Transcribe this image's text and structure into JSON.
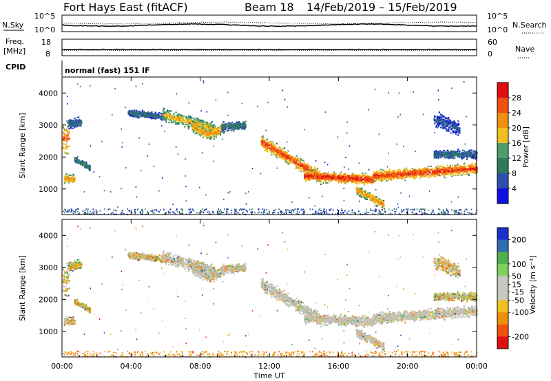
{
  "header": {
    "station": "Fort Hays East (fitACF)",
    "beam": "Beam 18",
    "date_range": "14/Feb/2019 – 15/Feb/2019"
  },
  "top_panels": {
    "nsky_label": "N.Sky",
    "nsky_ticks": [
      "10^5",
      "10^0"
    ],
    "nsearch_label": "N.Search",
    "nsearch_ticks": [
      "10^5",
      "10^0"
    ],
    "freq_label": "Freq.",
    "freq_unit": "[MHz]",
    "freq_ticks": [
      "18",
      "8"
    ],
    "nave_label": "Nave",
    "nave_ticks": [
      "60",
      "0"
    ],
    "cpid_label": "CPID",
    "cpid_value": "normal (fast) 151 IF"
  },
  "colors": {
    "power_scale": [
      "#1010e0",
      "#2f4fb0",
      "#2c7a5c",
      "#4f9d6a",
      "#f0c020",
      "#f09010",
      "#f05010",
      "#e01010"
    ],
    "velocity_scale": [
      "#e01010",
      "#f05010",
      "#f09010",
      "#f0c020",
      "#c8c8c0",
      "#c8c8c0",
      "#80d060",
      "#50b050",
      "#2f6fb0",
      "#1a2fd0"
    ],
    "ground_scatter": "#c0c0b8"
  },
  "chart_data": [
    {
      "type": "heatmap",
      "panel": "power",
      "ylabel": "Slant Range [km]",
      "yticks": [
        1000,
        2000,
        3000,
        4000
      ],
      "ylim": [
        200,
        4500
      ],
      "colorbar_label": "Power [dB]",
      "colorbar_ticks": [
        4,
        8,
        12,
        16,
        20,
        24,
        28
      ],
      "colorbar_range": [
        0,
        32
      ],
      "features": [
        {
          "t": [
            0.0,
            1.0
          ],
          "range": [
            2000,
            3300
          ],
          "power": 24
        },
        {
          "t": [
            0.2,
            0.8
          ],
          "range": [
            1150,
            1500
          ],
          "power": 20
        },
        {
          "t": [
            5.5,
            9.0
          ],
          "range": [
            2700,
            3700
          ],
          "power": 16
        },
        {
          "t": [
            10.5,
            12.0
          ],
          "range": [
            2900,
            3300
          ],
          "power": 8
        },
        {
          "t": [
            11.8,
            18.0
          ],
          "range": [
            1200,
            2700
          ],
          "power": 24
        },
        {
          "t": [
            16.0,
            24.0
          ],
          "range": [
            1200,
            2200
          ],
          "power": 24
        },
        {
          "t": [
            17.0,
            18.5
          ],
          "range": [
            500,
            1100
          ],
          "power": 20
        }
      ]
    },
    {
      "type": "heatmap",
      "panel": "velocity",
      "ylabel": "Slant Range [km]",
      "yticks": [
        1000,
        2000,
        3000,
        4000
      ],
      "ylim": [
        200,
        4500
      ],
      "colorbar_label": "Velocity [m s⁻¹]",
      "colorbar_ticks": [
        200,
        100,
        50,
        15,
        -15,
        -50,
        -100,
        -200
      ],
      "colorbar_range": [
        -250,
        250
      ]
    },
    {
      "type": "line",
      "panel": "time-axis",
      "xlabel": "Time UT",
      "xticks": [
        "00:00",
        "04:00",
        "08:00",
        "12:00",
        "16:00",
        "20:00",
        "00:00"
      ],
      "xlim": [
        0,
        24
      ]
    }
  ]
}
